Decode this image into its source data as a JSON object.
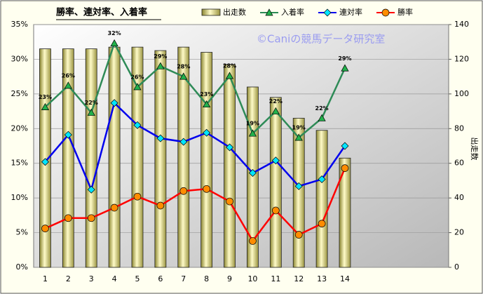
{
  "chart_data": {
    "type": "bar",
    "title": "勝率、連対率、入着率",
    "annotation": "©Caniの競馬データ研究室",
    "y2label": "出走数",
    "categories": [
      "1",
      "2",
      "3",
      "4",
      "5",
      "6",
      "7",
      "8",
      "9",
      "10",
      "11",
      "12",
      "13",
      "14",
      null,
      null,
      null,
      null
    ],
    "ylim": [
      0,
      35
    ],
    "yticks": [
      {
        "value": 0,
        "label": "0%"
      },
      {
        "value": 5,
        "label": "5%"
      },
      {
        "value": 10,
        "label": "10%"
      },
      {
        "value": 15,
        "label": "15%"
      },
      {
        "value": 20,
        "label": "20%"
      },
      {
        "value": 25,
        "label": "25%"
      },
      {
        "value": 30,
        "label": "30%"
      },
      {
        "value": 35,
        "label": "35%"
      }
    ],
    "y2lim": [
      0,
      140
    ],
    "y2ticks": [
      0,
      20,
      40,
      60,
      80,
      100,
      120,
      140
    ],
    "grid": true,
    "series": [
      {
        "name": "出走数",
        "type": "bar",
        "axis": "y2",
        "color": "#e6e08a",
        "values": [
          126,
          126,
          126,
          127,
          127,
          125,
          127,
          124,
          117,
          104,
          98,
          86,
          79,
          63,
          null,
          null,
          null,
          null
        ]
      },
      {
        "name": "入着率",
        "type": "line",
        "color": "#2e8b57",
        "marker": "triangle",
        "marker_color": "#22b14c",
        "values": [
          23.1,
          26.2,
          22.3,
          32.3,
          26.0,
          29.0,
          27.5,
          23.5,
          27.6,
          19.3,
          22.5,
          18.7,
          21.5,
          28.7,
          null,
          null,
          null,
          null
        ],
        "value_labels": [
          "23%",
          "26%",
          "22%",
          "32%",
          "26%",
          "29%",
          "28%",
          "23%",
          "28%",
          "19%",
          "22%",
          "19%",
          "22%",
          "29%",
          null,
          null,
          null,
          null
        ]
      },
      {
        "name": "連対率",
        "type": "line",
        "color": "#0000ee",
        "marker": "diamond",
        "marker_color": "#00e5ff",
        "values": [
          15.2,
          19.1,
          11.2,
          23.7,
          20.5,
          18.6,
          18.1,
          19.4,
          17.3,
          13.6,
          15.4,
          11.7,
          12.7,
          17.5,
          null,
          null,
          null,
          null
        ]
      },
      {
        "name": "勝率",
        "type": "line",
        "color": "#ff0000",
        "marker": "circle",
        "marker_color": "#ff8c00",
        "values": [
          5.6,
          7.1,
          7.1,
          8.6,
          10.2,
          8.9,
          11.0,
          11.3,
          9.5,
          3.8,
          8.2,
          4.7,
          6.3,
          14.3,
          null,
          null,
          null,
          null
        ]
      }
    ]
  }
}
